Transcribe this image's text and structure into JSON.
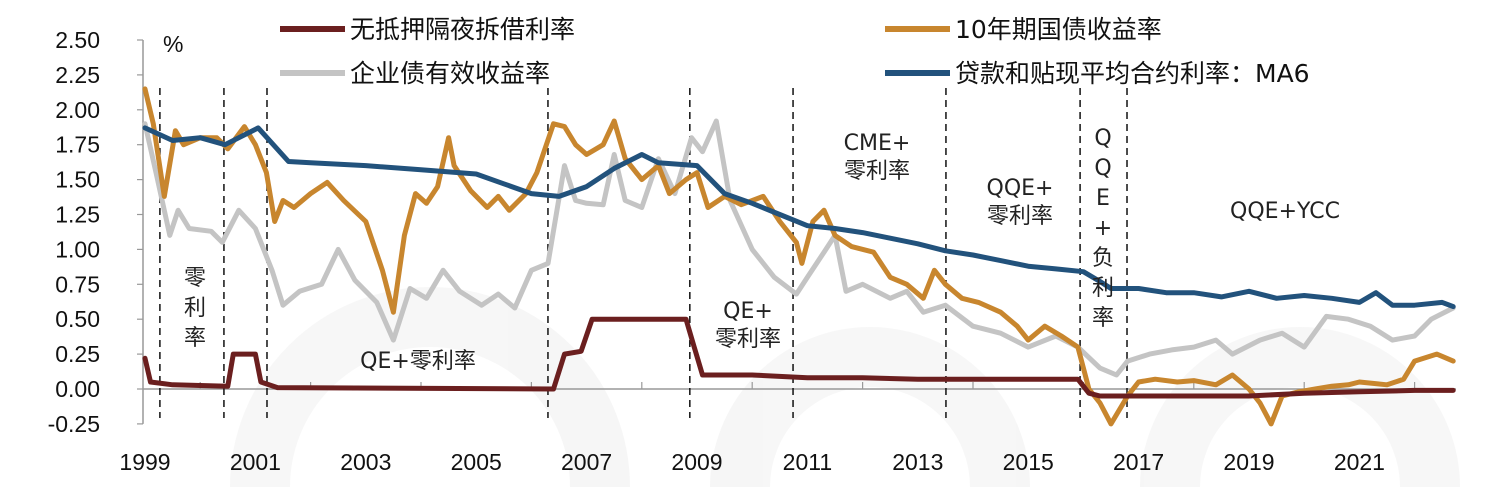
{
  "chart_data": {
    "type": "line",
    "title": "",
    "ylabel": "%",
    "xlabel": "",
    "ylim": [
      -0.25,
      2.5
    ],
    "xlim": [
      1999,
      2022.75
    ],
    "y_ticks": [
      "2.50",
      "2.25",
      "2.00",
      "1.75",
      "1.50",
      "1.25",
      "1.00",
      "0.75",
      "0.50",
      "0.25",
      "0.00",
      "-0.25"
    ],
    "y_tick_values": [
      2.5,
      2.25,
      2.0,
      1.75,
      1.5,
      1.25,
      1.0,
      0.75,
      0.5,
      0.25,
      0.0,
      -0.25
    ],
    "x_ticks": [
      "1999",
      "2001",
      "2003",
      "2005",
      "2007",
      "2009",
      "2011",
      "2013",
      "2015",
      "2017",
      "2019",
      "2021"
    ],
    "legend_placement": "top",
    "series": [
      {
        "name": "无抵押隔夜拆借利率",
        "color": "#6b1f1f",
        "x": [
          1999.0,
          1999.1,
          1999.5,
          2000.5,
          2000.6,
          2001.0,
          2001.1,
          2001.4,
          2006.4,
          2006.6,
          2006.9,
          2007.1,
          2007.5,
          2008.0,
          2008.8,
          2008.95,
          2009.1,
          2010,
          2011,
          2012,
          2013,
          2014,
          2015,
          2015.9,
          2016.1,
          2016.3,
          2017,
          2018,
          2019,
          2020,
          2021,
          2022,
          2022.7
        ],
        "y": [
          0.22,
          0.05,
          0.03,
          0.02,
          0.25,
          0.25,
          0.05,
          0.01,
          0.0,
          0.25,
          0.27,
          0.5,
          0.5,
          0.5,
          0.5,
          0.3,
          0.1,
          0.1,
          0.08,
          0.08,
          0.07,
          0.07,
          0.07,
          0.07,
          -0.03,
          -0.05,
          -0.05,
          -0.05,
          -0.05,
          -0.03,
          -0.02,
          -0.01,
          -0.01
        ]
      },
      {
        "name": "10年期国债收益率",
        "color": "#c8862e",
        "x": [
          1999.0,
          1999.15,
          1999.35,
          1999.55,
          1999.7,
          2000.0,
          2000.3,
          2000.5,
          2000.8,
          2001.0,
          2001.2,
          2001.35,
          2001.5,
          2001.7,
          2002.0,
          2002.3,
          2002.6,
          2003.0,
          2003.3,
          2003.5,
          2003.7,
          2003.9,
          2004.1,
          2004.3,
          2004.5,
          2004.6,
          2004.9,
          2005.2,
          2005.4,
          2005.6,
          2005.9,
          2006.1,
          2006.4,
          2006.6,
          2006.8,
          2007.0,
          2007.3,
          2007.5,
          2007.7,
          2008.0,
          2008.3,
          2008.5,
          2008.8,
          2009.0,
          2009.2,
          2009.5,
          2009.8,
          2010.2,
          2010.5,
          2010.8,
          2010.9,
          2011.1,
          2011.3,
          2011.5,
          2011.8,
          2012.2,
          2012.5,
          2012.8,
          2013.1,
          2013.3,
          2013.5,
          2013.8,
          2014.1,
          2014.5,
          2014.8,
          2015.0,
          2015.3,
          2015.6,
          2015.9,
          2016.1,
          2016.3,
          2016.5,
          2016.8,
          2017.0,
          2017.3,
          2017.7,
          2018.0,
          2018.4,
          2018.7,
          2019.0,
          2019.2,
          2019.4,
          2019.6,
          2019.9,
          2020.2,
          2020.5,
          2020.8,
          2021.0,
          2021.5,
          2021.8,
          2022.0,
          2022.4,
          2022.7
        ],
        "y": [
          2.15,
          1.9,
          1.38,
          1.85,
          1.75,
          1.8,
          1.8,
          1.72,
          1.88,
          1.75,
          1.55,
          1.2,
          1.35,
          1.3,
          1.4,
          1.48,
          1.35,
          1.2,
          0.85,
          0.55,
          1.1,
          1.4,
          1.33,
          1.45,
          1.8,
          1.6,
          1.42,
          1.3,
          1.38,
          1.28,
          1.4,
          1.55,
          1.9,
          1.88,
          1.75,
          1.68,
          1.75,
          1.92,
          1.65,
          1.5,
          1.6,
          1.4,
          1.5,
          1.55,
          1.3,
          1.38,
          1.32,
          1.38,
          1.2,
          1.05,
          0.9,
          1.2,
          1.28,
          1.1,
          1.02,
          0.98,
          0.8,
          0.75,
          0.65,
          0.85,
          0.75,
          0.65,
          0.62,
          0.55,
          0.45,
          0.35,
          0.45,
          0.38,
          0.3,
          0.0,
          -0.1,
          -0.25,
          -0.05,
          0.05,
          0.07,
          0.05,
          0.06,
          0.03,
          0.1,
          0.0,
          -0.1,
          -0.25,
          -0.05,
          -0.02,
          0.0,
          0.02,
          0.03,
          0.05,
          0.03,
          0.07,
          0.2,
          0.25,
          0.2
        ]
      },
      {
        "name": "企业债有效收益率",
        "color": "#c4c4c4",
        "x": [
          1999.0,
          1999.2,
          1999.45,
          1999.6,
          1999.8,
          2000.2,
          2000.4,
          2000.7,
          2001.0,
          2001.3,
          2001.5,
          2001.8,
          2002.2,
          2002.5,
          2002.8,
          2003.2,
          2003.5,
          2003.8,
          2004.1,
          2004.4,
          2004.7,
          2005.1,
          2005.4,
          2005.7,
          2006.0,
          2006.3,
          2006.6,
          2006.8,
          2007.0,
          2007.3,
          2007.5,
          2007.7,
          2008.0,
          2008.3,
          2008.6,
          2008.9,
          2009.1,
          2009.35,
          2009.6,
          2010.0,
          2010.4,
          2010.8,
          2011.0,
          2011.3,
          2011.5,
          2011.7,
          2012.0,
          2012.5,
          2012.8,
          2013.1,
          2013.5,
          2014.0,
          2014.5,
          2015.0,
          2015.5,
          2015.9,
          2016.3,
          2016.6,
          2016.8,
          2017.2,
          2017.6,
          2018.0,
          2018.4,
          2018.7,
          2019.2,
          2019.6,
          2020.0,
          2020.4,
          2020.8,
          2021.2,
          2021.6,
          2022.0,
          2022.3,
          2022.7
        ],
        "y": [
          1.9,
          1.55,
          1.1,
          1.28,
          1.15,
          1.13,
          1.05,
          1.28,
          1.15,
          0.85,
          0.6,
          0.7,
          0.75,
          1.0,
          0.78,
          0.62,
          0.35,
          0.72,
          0.65,
          0.85,
          0.7,
          0.6,
          0.68,
          0.58,
          0.85,
          0.9,
          1.6,
          1.35,
          1.33,
          1.32,
          1.68,
          1.35,
          1.3,
          1.65,
          1.4,
          1.8,
          1.7,
          1.92,
          1.35,
          1.0,
          0.8,
          0.68,
          0.8,
          0.98,
          1.1,
          0.7,
          0.75,
          0.65,
          0.7,
          0.55,
          0.6,
          0.45,
          0.4,
          0.3,
          0.38,
          0.3,
          0.15,
          0.1,
          0.2,
          0.25,
          0.28,
          0.3,
          0.35,
          0.25,
          0.35,
          0.4,
          0.3,
          0.52,
          0.5,
          0.45,
          0.35,
          0.38,
          0.5,
          0.58
        ]
      },
      {
        "name": "贷款和贴现平均合约利率：MA6",
        "color": "#22527c",
        "x": [
          1999.0,
          1999.5,
          2000.0,
          2000.45,
          2001.05,
          2001.6,
          2002,
          2003,
          2004,
          2005,
          2005.5,
          2006,
          2006.5,
          2007,
          2007.5,
          2008,
          2008.3,
          2009,
          2009.5,
          2010,
          2010.5,
          2011,
          2011.5,
          2012,
          2012.5,
          2013,
          2013.5,
          2014,
          2014.5,
          2015,
          2015.5,
          2016,
          2016.3,
          2016.5,
          2017,
          2017.5,
          2018,
          2018.5,
          2019,
          2019.5,
          2020,
          2020.5,
          2021,
          2021.3,
          2021.6,
          2022,
          2022.5,
          2022.7
        ],
        "y": [
          1.87,
          1.78,
          1.8,
          1.75,
          1.87,
          1.63,
          1.62,
          1.6,
          1.57,
          1.54,
          1.47,
          1.4,
          1.38,
          1.45,
          1.58,
          1.68,
          1.62,
          1.6,
          1.4,
          1.33,
          1.25,
          1.17,
          1.15,
          1.12,
          1.08,
          1.04,
          0.99,
          0.96,
          0.92,
          0.88,
          0.86,
          0.84,
          0.77,
          0.72,
          0.72,
          0.69,
          0.69,
          0.66,
          0.7,
          0.65,
          0.67,
          0.65,
          0.62,
          0.69,
          0.6,
          0.6,
          0.62,
          0.59
        ]
      }
    ],
    "period_boundaries": [
      1999.27,
      2000.43,
      2001.21,
      2006.3,
      2008.87,
      2010.74,
      2013.51,
      2015.94,
      2016.79
    ],
    "annotations": [
      {
        "text": "零利率",
        "lines": [
          "零",
          "利",
          "率"
        ]
      },
      {
        "text": "QE+零利率",
        "lines": [
          "QE+零利率"
        ]
      },
      {
        "text": "QE+零利率",
        "lines": [
          "QE+",
          "零利率"
        ]
      },
      {
        "text": "CME+零利率",
        "lines": [
          "CME+",
          "零利率"
        ]
      },
      {
        "text": "QQE+零利率",
        "lines": [
          "QQE+",
          "零利率"
        ]
      },
      {
        "text": "QQE+负利率",
        "lines": [
          "Q",
          "Q",
          "E",
          "+",
          "负",
          "利",
          "率"
        ]
      },
      {
        "text": "QQE+YCC",
        "lines": [
          "QQE+YCC"
        ]
      }
    ]
  }
}
